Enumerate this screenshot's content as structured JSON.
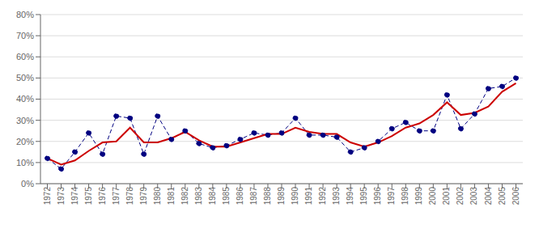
{
  "chart_data": {
    "type": "line",
    "x": [
      1972,
      1973,
      1974,
      1975,
      1976,
      1977,
      1978,
      1979,
      1980,
      1981,
      1982,
      1983,
      1984,
      1985,
      1986,
      1987,
      1988,
      1989,
      1990,
      1991,
      1992,
      1993,
      1994,
      1995,
      1996,
      1997,
      1998,
      1999,
      2000,
      2001,
      2002,
      2003,
      2004,
      2005,
      2006
    ],
    "series": [
      {
        "color": "#000080",
        "line_style": "dashed",
        "marker": "circle",
        "values": [
          0.12,
          0.07,
          0.15,
          0.24,
          0.14,
          0.32,
          0.31,
          0.14,
          0.32,
          0.21,
          0.25,
          0.19,
          0.17,
          0.18,
          0.21,
          0.24,
          0.23,
          0.24,
          0.31,
          0.23,
          0.23,
          0.22,
          0.15,
          0.17,
          0.2,
          0.26,
          0.29,
          0.25,
          0.25,
          0.42,
          0.26,
          0.33,
          0.45,
          0.46,
          0.5
        ]
      },
      {
        "color": "#CC0000",
        "line_style": "solid",
        "values": [
          0.12,
          0.09,
          0.11,
          0.155,
          0.195,
          0.2,
          0.265,
          0.195,
          0.195,
          0.215,
          0.245,
          0.205,
          0.175,
          0.175,
          0.195,
          0.215,
          0.235,
          0.235,
          0.265,
          0.245,
          0.235,
          0.235,
          0.195,
          0.175,
          0.195,
          0.225,
          0.265,
          0.285,
          0.325,
          0.385,
          0.325,
          0.335,
          0.365,
          0.435,
          0.475
        ]
      }
    ],
    "xlim": [
      1971.5,
      2006.5
    ],
    "xticks": [
      1972,
      1973,
      1974,
      1975,
      1976,
      1977,
      1978,
      1979,
      1980,
      1981,
      1982,
      1983,
      1984,
      1985,
      1986,
      1987,
      1988,
      1989,
      1990,
      1991,
      1992,
      1993,
      1994,
      1995,
      1996,
      1997,
      1998,
      1999,
      2000,
      2001,
      2002,
      2003,
      2004,
      2005,
      2006
    ],
    "ylim": [
      0.0,
      0.8
    ],
    "yticks": [
      {
        "value": 0.0,
        "label": "0%"
      },
      {
        "value": 0.1,
        "label": "10%"
      },
      {
        "value": 0.2,
        "label": "20%"
      },
      {
        "value": 0.3,
        "label": "30%"
      },
      {
        "value": 0.4,
        "label": "40%"
      },
      {
        "value": 0.5,
        "label": "50%"
      },
      {
        "value": 0.6,
        "label": "60%"
      },
      {
        "value": 0.7,
        "label": "70%"
      },
      {
        "value": 0.8,
        "label": "80%"
      }
    ],
    "grid": true
  }
}
